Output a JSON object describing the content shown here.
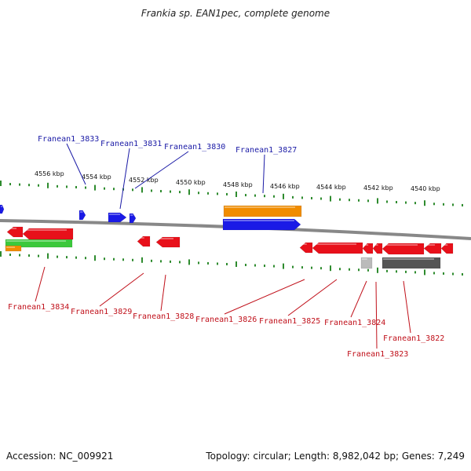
{
  "title": "Frankia sp. EAN1pec, complete genome",
  "accession": "Accession: NC_009921",
  "summary": "Topology: circular; Length: 8,982,042 bp; Genes: 7,249",
  "colors": {
    "backbone": "#888888",
    "tick": "#2e8b2e",
    "forward_label": "#1a1aa6",
    "reverse_label": "#c0101a",
    "gene_red": "#e8101a",
    "gene_blue": "#1a1ae6",
    "gene_orange": "#f08c00",
    "gene_green": "#3cc83c",
    "gene_gray": "#555555",
    "gene_lightgray": "#bbbbbb"
  },
  "scale_labels": [
    "4556 kbp",
    "4554 kbp",
    "4552 kbp",
    "4550 kbp",
    "4548 kbp",
    "4546 kbp",
    "4544 kbp",
    "4542 kbp",
    "4540 kbp"
  ],
  "gene_labels_top": [
    "Franean1_3833",
    "Franean1_3831",
    "Franean1_3830",
    "Franean1_3827"
  ],
  "gene_labels_bottom": [
    "Franean1_3834",
    "Franean1_3829",
    "Franean1_3828",
    "Franean1_3826",
    "Franean1_3825",
    "Franean1_3824",
    "Franean1_3823",
    "Franean1_3822"
  ]
}
